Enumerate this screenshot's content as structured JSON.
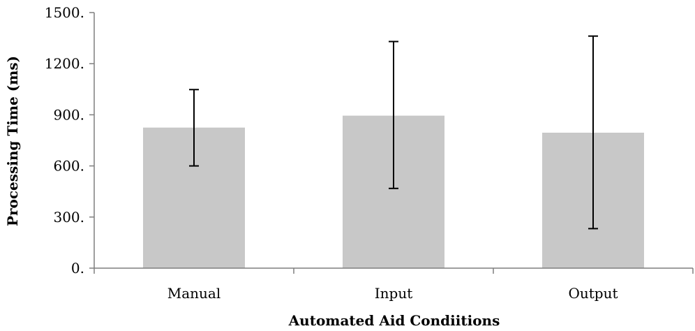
{
  "chart_data": {
    "type": "bar",
    "title": "",
    "xlabel": "Automated Aid Condiitions",
    "ylabel": "Processing Time  (ms)",
    "categories": [
      "Manual",
      "Input",
      "Output"
    ],
    "values": [
      825,
      895,
      795
    ],
    "error_bars": [
      {
        "low": 600,
        "high": 1048
      },
      {
        "low": 468,
        "high": 1330
      },
      {
        "low": 232,
        "high": 1362
      }
    ],
    "ylim": [
      0,
      1500
    ],
    "yticks": [
      0,
      300,
      600,
      900,
      1200,
      1500
    ],
    "ytick_labels": [
      "0.",
      "300.",
      "600.",
      "900.",
      "1200.",
      "1500."
    ],
    "grid": false,
    "colors": {
      "bar": "#c8c8c8",
      "error_bar": "#000000",
      "axis": "#7f7f7f"
    }
  }
}
